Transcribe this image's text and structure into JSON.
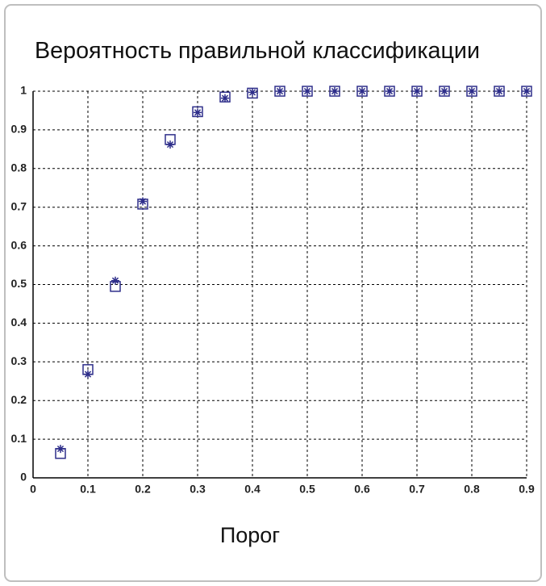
{
  "chart_data": {
    "type": "scatter",
    "title": "Вероятность правильной классификации",
    "xlabel": "Порог",
    "x": [
      0.05,
      0.1,
      0.15,
      0.2,
      0.25,
      0.3,
      0.35,
      0.4,
      0.45,
      0.5,
      0.55,
      0.6,
      0.65,
      0.7,
      0.75,
      0.8,
      0.85,
      0.9
    ],
    "series": [
      {
        "marker": "square",
        "color": "#2e2e8a",
        "values": [
          0.063,
          0.28,
          0.495,
          0.708,
          0.875,
          0.947,
          0.985,
          0.995,
          1,
          1,
          1,
          1,
          1,
          1,
          1,
          1,
          1,
          1
        ]
      },
      {
        "marker": "asterisk",
        "color": "#2e2e8a",
        "values": [
          0.075,
          0.268,
          0.51,
          0.715,
          0.862,
          0.945,
          0.982,
          0.997,
          1,
          1,
          1,
          1,
          1,
          1,
          1,
          1,
          1,
          1
        ]
      }
    ],
    "xlim": [
      0,
      0.9
    ],
    "xticks": [
      0,
      0.1,
      0.2,
      0.3,
      0.4,
      0.5,
      0.6,
      0.7,
      0.8,
      0.9
    ],
    "ylim": [
      0,
      1
    ],
    "yticks": [
      0,
      0.1,
      0.2,
      0.3,
      0.4,
      0.5,
      0.6,
      0.7,
      0.8,
      0.9,
      1
    ],
    "grid": true
  }
}
